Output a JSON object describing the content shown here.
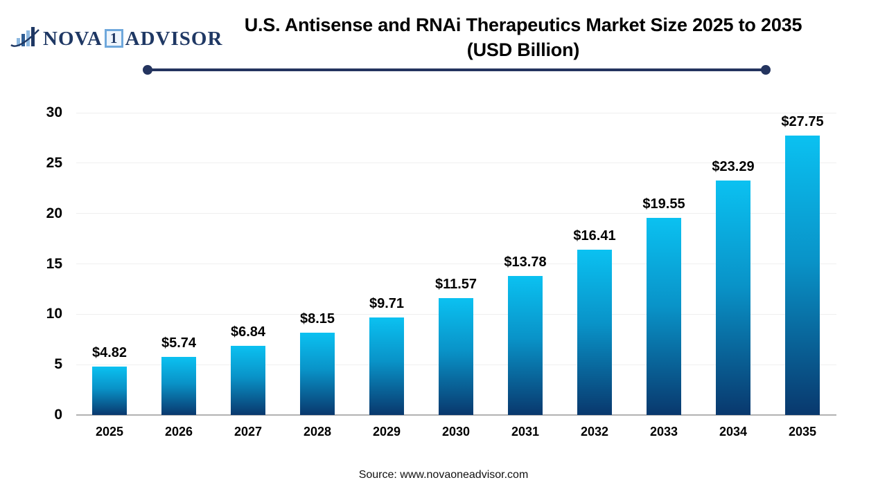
{
  "logo": {
    "name_part1": "NOVA",
    "name_boxed": "1",
    "name_part2": "ADVISOR",
    "navy": "#1f3864",
    "light_blue": "#6fa8dc"
  },
  "header": {
    "title_line1": "U.S. Antisense and RNAi Therapeutics Market  Size 2025 to 2035",
    "title_line2": "(USD Billion)",
    "underline_color": "#24345f"
  },
  "chart_data": {
    "type": "bar",
    "title": "U.S. Antisense and RNAi Therapeutics Market Size 2025 to 2035 (USD Billion)",
    "categories": [
      "2025",
      "2026",
      "2027",
      "2028",
      "2029",
      "2030",
      "2031",
      "2032",
      "2033",
      "2034",
      "2035"
    ],
    "values": [
      4.82,
      5.74,
      6.84,
      8.15,
      9.71,
      11.57,
      13.78,
      16.41,
      19.55,
      23.29,
      27.75
    ],
    "value_labels": [
      "$4.82",
      "$5.74",
      "$6.84",
      "$8.15",
      "$9.71",
      "$11.57",
      "$13.78",
      "$16.41",
      "$19.55",
      "$23.29",
      "$27.75"
    ],
    "xlabel": "",
    "ylabel": "",
    "ylim": [
      0,
      30
    ],
    "yticks": [
      0,
      5,
      10,
      15,
      20,
      25,
      30
    ],
    "grid": true,
    "legend": false,
    "bar_color_top": "#0bc1f1",
    "bar_color_bottom": "#09386d"
  },
  "footer": {
    "source": "Source: www.novaoneadvisor.com"
  }
}
